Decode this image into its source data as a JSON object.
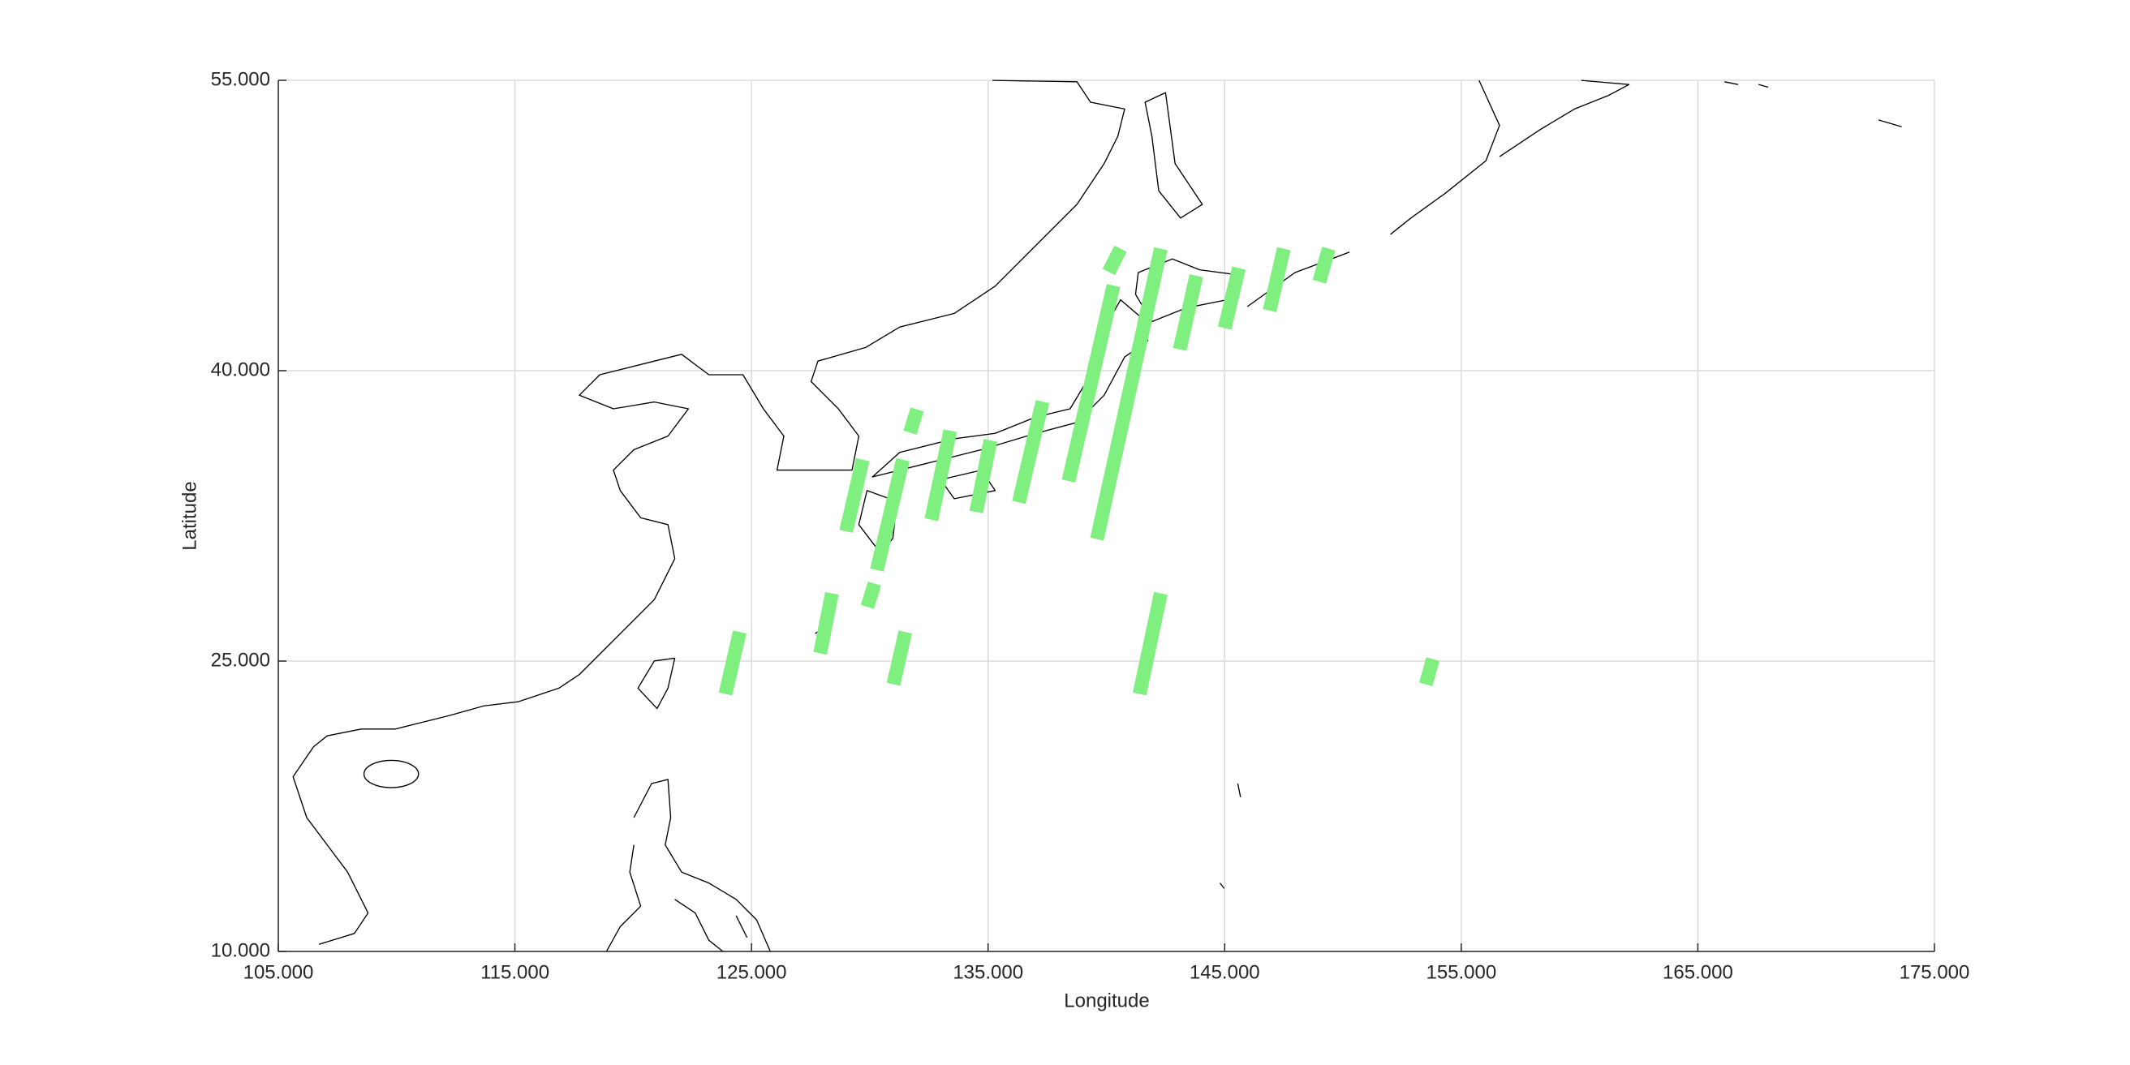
{
  "chart_data": {
    "type": "swath-map",
    "xlabel": "Longitude",
    "ylabel": "Latitude",
    "xlim": [
      105,
      175
    ],
    "ylim": [
      10,
      55
    ],
    "xticks": [
      {
        "value": 105,
        "label": "105.000"
      },
      {
        "value": 115,
        "label": "115.000"
      },
      {
        "value": 125,
        "label": "125.000"
      },
      {
        "value": 135,
        "label": "135.000"
      },
      {
        "value": 145,
        "label": "145.000"
      },
      {
        "value": 155,
        "label": "155.000"
      },
      {
        "value": 165,
        "label": "165.000"
      },
      {
        "value": 175,
        "label": "175.000"
      }
    ],
    "yticks": [
      {
        "value": 10,
        "label": "10.000"
      },
      {
        "value": 25,
        "label": "25.000"
      },
      {
        "value": 40,
        "label": "40.000"
      },
      {
        "value": 55,
        "label": "55.000"
      }
    ],
    "grid": true,
    "color": "#7ff07f",
    "swaths": [
      {
        "lon": [
          140.6,
          140.1
        ],
        "lat": [
          46.3,
          45.1
        ]
      },
      {
        "lon": [
          142.3,
          139.6
        ],
        "lat": [
          46.3,
          31.3
        ]
      },
      {
        "lon": [
          140.3,
          138.4
        ],
        "lat": [
          44.4,
          34.3
        ]
      },
      {
        "lon": [
          143.8,
          143.1
        ],
        "lat": [
          44.9,
          41.1
        ]
      },
      {
        "lon": [
          145.6,
          145.0
        ],
        "lat": [
          45.3,
          42.2
        ]
      },
      {
        "lon": [
          147.5,
          146.9
        ],
        "lat": [
          46.3,
          43.1
        ]
      },
      {
        "lon": [
          149.4,
          149.0
        ],
        "lat": [
          46.3,
          44.6
        ]
      },
      {
        "lon": [
          137.3,
          136.3
        ],
        "lat": [
          38.4,
          33.2
        ]
      },
      {
        "lon": [
          135.1,
          134.5
        ],
        "lat": [
          36.4,
          32.7
        ]
      },
      {
        "lon": [
          133.4,
          132.6
        ],
        "lat": [
          36.9,
          32.3
        ]
      },
      {
        "lon": [
          132.0,
          131.7
        ],
        "lat": [
          38.0,
          36.8
        ]
      },
      {
        "lon": [
          131.4,
          130.3
        ],
        "lat": [
          35.4,
          29.7
        ]
      },
      {
        "lon": [
          129.7,
          129.0
        ],
        "lat": [
          35.4,
          31.7
        ]
      },
      {
        "lon": [
          130.2,
          129.9
        ],
        "lat": [
          29.0,
          27.8
        ]
      },
      {
        "lon": [
          128.4,
          127.9
        ],
        "lat": [
          28.5,
          25.4
        ]
      },
      {
        "lon": [
          124.5,
          123.9
        ],
        "lat": [
          26.5,
          23.3
        ]
      },
      {
        "lon": [
          131.5,
          131.0
        ],
        "lat": [
          26.5,
          23.8
        ]
      },
      {
        "lon": [
          142.3,
          141.4
        ],
        "lat": [
          28.5,
          23.3
        ]
      },
      {
        "lon": [
          153.8,
          153.5
        ],
        "lat": [
          25.1,
          23.8
        ]
      }
    ]
  }
}
